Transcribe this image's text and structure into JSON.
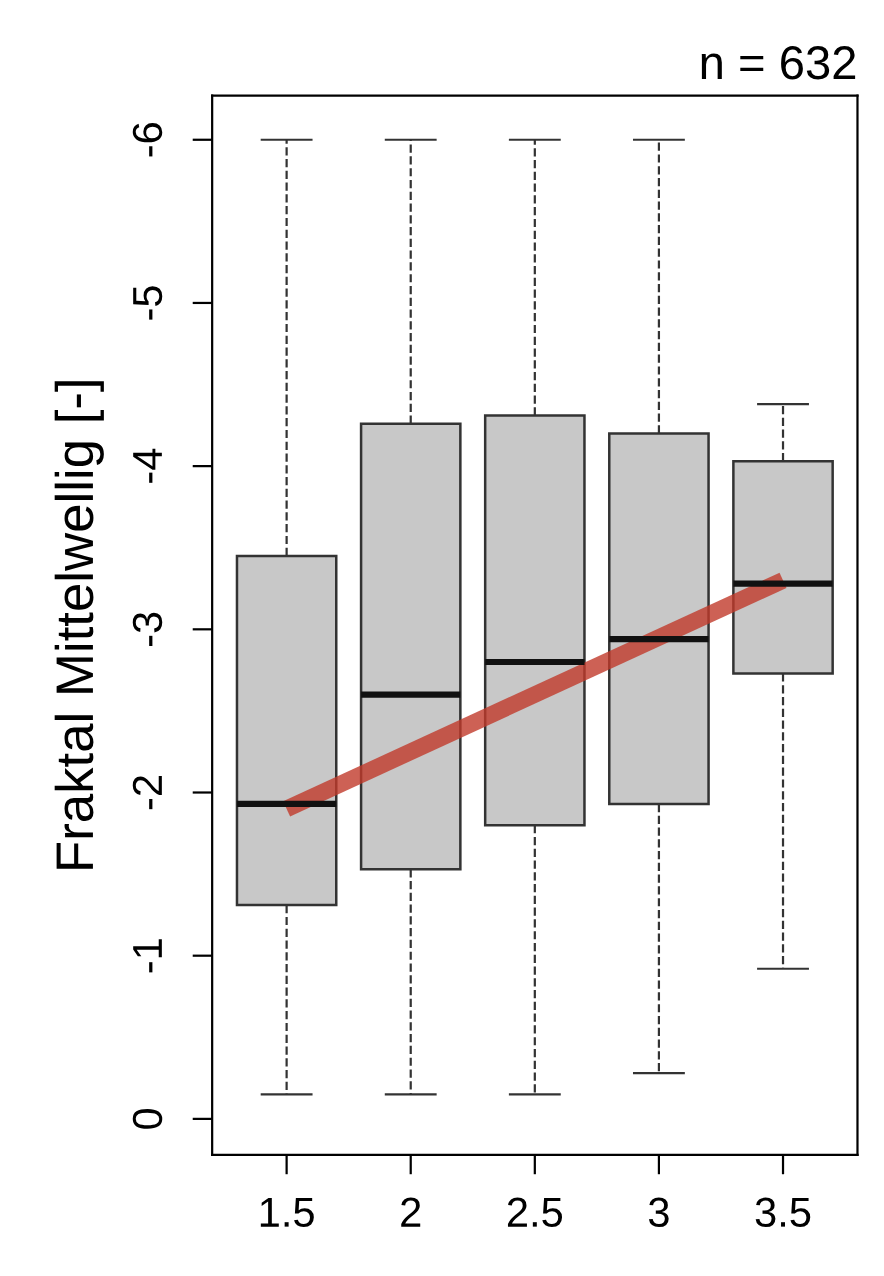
{
  "chart_data": {
    "type": "box",
    "title": "n = 632",
    "ylabel": "Fraktal Mittelwellig [-]",
    "categories": [
      "1.5",
      "2",
      "2.5",
      "3",
      "3.5"
    ],
    "boxes": [
      {
        "low": -6,
        "q1": -3.45,
        "median": -1.93,
        "q3": -1.31,
        "high": -0.15
      },
      {
        "low": -6,
        "q1": -4.26,
        "median": -2.6,
        "q3": -1.53,
        "high": -0.15
      },
      {
        "low": -6,
        "q1": -4.31,
        "median": -2.8,
        "q3": -1.8,
        "high": -0.15
      },
      {
        "low": -6,
        "q1": -4.2,
        "median": -2.94,
        "q3": -1.93,
        "high": -0.28
      },
      {
        "low": -4.38,
        "q1": -4.03,
        "median": -3.28,
        "q3": -2.73,
        "high": -0.92
      }
    ],
    "color": "#c8c8c8",
    "series": [
      {
        "type": "line",
        "x": [
          "1.5",
          "3.5"
        ],
        "values": [
          -1.9,
          -3.3
        ],
        "color": "#c0392b"
      }
    ],
    "ylim": [
      0.22,
      -6.27
    ],
    "yticks": [
      0,
      -1,
      -2,
      -3,
      -4,
      -5,
      -6
    ],
    "grid": false,
    "legend": false
  }
}
